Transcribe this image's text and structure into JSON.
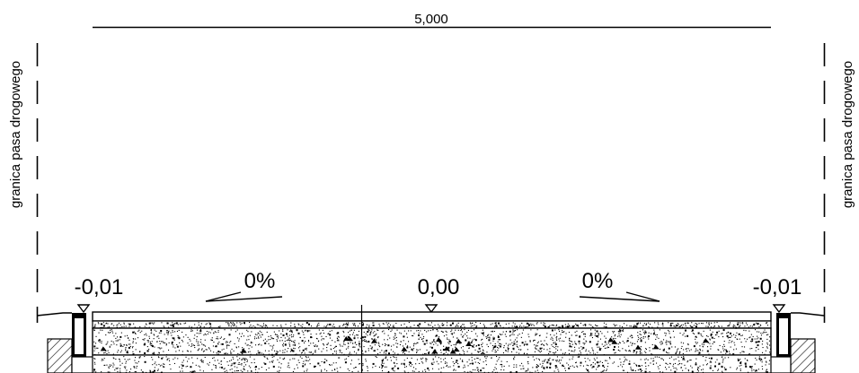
{
  "dimension": {
    "width_label": "5,000"
  },
  "boundary_labels": {
    "left": "granica pasa drogowego",
    "right": "granica pasa drogowego"
  },
  "elevations": {
    "left": "-0,01",
    "center": "0,00",
    "right": "-0,01"
  },
  "slopes": {
    "left": "0%",
    "right": "0%"
  }
}
